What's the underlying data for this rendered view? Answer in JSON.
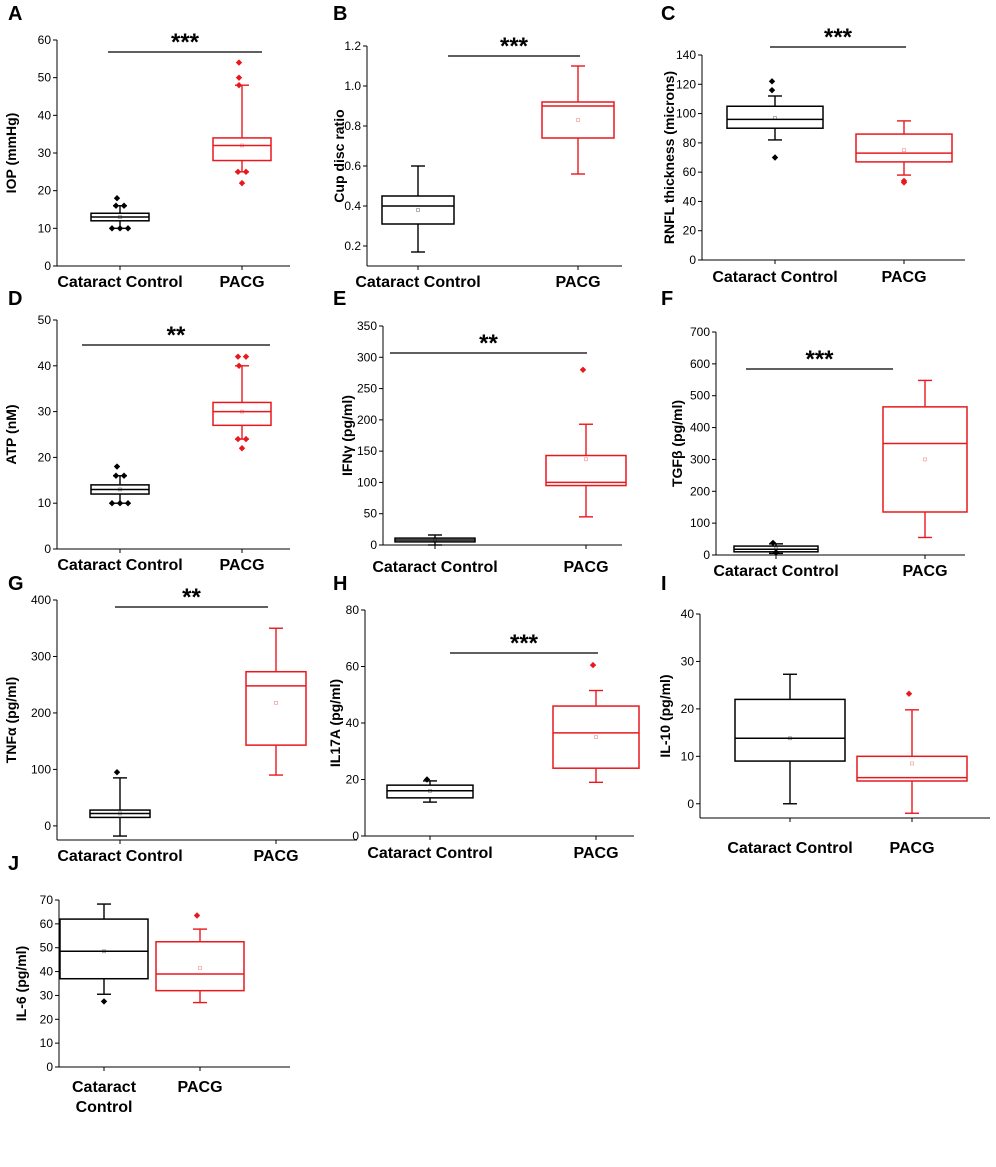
{
  "colors": {
    "control": "#000000",
    "pacg": "#e8191e",
    "axis": "#000000"
  },
  "chart_data": [
    {
      "id": "A",
      "type": "box",
      "panel_label": "A",
      "ylabel": "IOP (mmHg)",
      "ylim": [
        0,
        60
      ],
      "yticks": [
        0,
        10,
        20,
        30,
        40,
        50,
        60
      ],
      "categories": [
        "Cataract Control",
        "PACG"
      ],
      "series": [
        {
          "name": "Cataract Control",
          "whisker_low": 10,
          "q1": 12,
          "median": 13,
          "q3": 14,
          "whisker_high": 16,
          "mean": 13,
          "outliers": [
            10,
            10,
            10,
            16,
            16,
            18
          ]
        },
        {
          "name": "PACG",
          "whisker_low": 25,
          "q1": 28,
          "median": 32,
          "q3": 34,
          "whisker_high": 48,
          "mean": 32,
          "outliers": [
            22,
            25,
            25,
            48,
            50,
            54
          ]
        }
      ],
      "significance": "***"
    },
    {
      "id": "B",
      "type": "box",
      "panel_label": "B",
      "ylabel": "Cup disc ratio",
      "ylim": [
        0.1,
        1.2
      ],
      "yticks": [
        0.2,
        0.4,
        0.6,
        0.8,
        1.0,
        1.2
      ],
      "tick_labels": [
        "0.2",
        "0.4",
        "0.6",
        "0.8",
        "1.0",
        "1.2"
      ],
      "categories": [
        "Cataract Control",
        "PACG"
      ],
      "series": [
        {
          "name": "Cataract Control",
          "whisker_low": 0.17,
          "q1": 0.31,
          "median": 0.4,
          "q3": 0.45,
          "whisker_high": 0.6,
          "mean": 0.38,
          "outliers": []
        },
        {
          "name": "PACG",
          "whisker_low": 0.56,
          "q1": 0.74,
          "median": 0.9,
          "q3": 0.92,
          "whisker_high": 1.1,
          "mean": 0.83,
          "outliers": []
        }
      ],
      "significance": "***"
    },
    {
      "id": "C",
      "type": "box",
      "panel_label": "C",
      "ylabel": "RNFL thickness (microns)",
      "ylim": [
        0,
        140
      ],
      "yticks": [
        0,
        20,
        40,
        60,
        80,
        100,
        120,
        140
      ],
      "categories": [
        "Cataract Control",
        "PACG"
      ],
      "series": [
        {
          "name": "Cataract Control",
          "whisker_low": 82,
          "q1": 90,
          "median": 96,
          "q3": 105,
          "whisker_high": 112,
          "mean": 97,
          "outliers": [
            70,
            116,
            122
          ]
        },
        {
          "name": "PACG",
          "whisker_low": 58,
          "q1": 67,
          "median": 73,
          "q3": 86,
          "whisker_high": 95,
          "mean": 75,
          "outliers": [
            53,
            54
          ]
        }
      ],
      "significance": "***"
    },
    {
      "id": "D",
      "type": "box",
      "panel_label": "D",
      "ylabel": "ATP (nM)",
      "ylim": [
        0,
        50
      ],
      "yticks": [
        0,
        10,
        20,
        30,
        40,
        50
      ],
      "categories": [
        "Cataract Control",
        "PACG"
      ],
      "series": [
        {
          "name": "Cataract Control",
          "whisker_low": 10,
          "q1": 12,
          "median": 13,
          "q3": 14,
          "whisker_high": 16,
          "mean": 13,
          "outliers": [
            10,
            10,
            10,
            16,
            16,
            18
          ]
        },
        {
          "name": "PACG",
          "whisker_low": 24,
          "q1": 27,
          "median": 30,
          "q3": 32,
          "whisker_high": 40,
          "mean": 30,
          "outliers": [
            22,
            24,
            24,
            40,
            42,
            42
          ]
        }
      ],
      "significance": "**"
    },
    {
      "id": "E",
      "type": "box",
      "panel_label": "E",
      "ylabel": "IFNγ (pg/ml)",
      "ylim": [
        0,
        350
      ],
      "yticks": [
        0,
        50,
        100,
        150,
        200,
        250,
        300,
        350
      ],
      "categories": [
        "Cataract Control",
        "PACG"
      ],
      "series": [
        {
          "name": "Cataract Control",
          "whisker_low": 0,
          "q1": 5,
          "median": 8,
          "q3": 11,
          "whisker_high": 16,
          "mean": 8,
          "outliers": []
        },
        {
          "name": "PACG",
          "whisker_low": 45,
          "q1": 95,
          "median": 100,
          "q3": 143,
          "whisker_high": 193,
          "mean": 137,
          "outliers": [
            280
          ]
        }
      ],
      "significance": "**"
    },
    {
      "id": "F",
      "type": "box",
      "panel_label": "F",
      "ylabel": "TGFβ (pg/ml)",
      "ylim": [
        0,
        700
      ],
      "yticks": [
        0,
        100,
        200,
        300,
        400,
        500,
        600,
        700
      ],
      "categories": [
        "Cataract Control",
        "PACG"
      ],
      "series": [
        {
          "name": "Cataract Control",
          "whisker_low": 5,
          "q1": 10,
          "median": 18,
          "q3": 28,
          "whisker_high": 35,
          "mean": 20,
          "outliers": [
            8,
            38
          ]
        },
        {
          "name": "PACG",
          "whisker_low": 55,
          "q1": 135,
          "median": 350,
          "q3": 465,
          "whisker_high": 548,
          "mean": 300,
          "outliers": []
        }
      ],
      "significance": "***"
    },
    {
      "id": "G",
      "type": "box",
      "panel_label": "G",
      "ylabel": "TNFα (pg/ml)",
      "ylim": [
        -25,
        400
      ],
      "yticks": [
        0,
        100,
        200,
        300,
        400
      ],
      "categories": [
        "Cataract Control",
        "PACG"
      ],
      "series": [
        {
          "name": "Cataract Control",
          "whisker_low": -18,
          "q1": 15,
          "median": 22,
          "q3": 28,
          "whisker_high": 85,
          "mean": 22,
          "outliers": [
            95
          ]
        },
        {
          "name": "PACG",
          "whisker_low": 90,
          "q1": 143,
          "median": 248,
          "q3": 273,
          "whisker_high": 350,
          "mean": 218,
          "outliers": []
        }
      ],
      "significance": "**"
    },
    {
      "id": "H",
      "type": "box",
      "panel_label": "H",
      "ylabel": "IL17A (pg/ml)",
      "ylim": [
        0,
        80
      ],
      "yticks": [
        0,
        20,
        40,
        60,
        80
      ],
      "categories": [
        "Cataract Control",
        "PACG"
      ],
      "series": [
        {
          "name": "Cataract Control",
          "whisker_low": 12,
          "q1": 13.5,
          "median": 16,
          "q3": 18,
          "whisker_high": 19.5,
          "mean": 16,
          "outliers": [
            20
          ]
        },
        {
          "name": "PACG",
          "whisker_low": 19,
          "q1": 24,
          "median": 36.5,
          "q3": 46,
          "whisker_high": 51.5,
          "mean": 35,
          "outliers": [
            60.5
          ]
        }
      ],
      "significance": "***"
    },
    {
      "id": "I",
      "type": "box",
      "panel_label": "I",
      "ylabel": "IL-10 (pg/ml)",
      "ylim": [
        -3,
        40
      ],
      "yticks": [
        0,
        10,
        20,
        30,
        40
      ],
      "categories": [
        "Cataract Control",
        "PACG"
      ],
      "series": [
        {
          "name": "Cataract Control",
          "whisker_low": 0,
          "q1": 9,
          "median": 13.8,
          "q3": 22,
          "whisker_high": 27.3,
          "mean": 13.8,
          "outliers": []
        },
        {
          "name": "PACG",
          "whisker_low": -2,
          "q1": 4.8,
          "median": 5.5,
          "q3": 10,
          "whisker_high": 19.8,
          "mean": 8.5,
          "outliers": [
            23.2
          ]
        }
      ],
      "significance": ""
    },
    {
      "id": "J",
      "type": "box",
      "panel_label": "J",
      "ylabel": "IL-6 (pg/ml)",
      "ylim": [
        0,
        70
      ],
      "yticks": [
        0,
        10,
        20,
        30,
        40,
        50,
        60,
        70
      ],
      "categories": [
        "Cataract Control",
        "PACG"
      ],
      "series": [
        {
          "name": "Cataract Control",
          "whisker_low": 30.5,
          "q1": 37,
          "median": 48.5,
          "q3": 62,
          "whisker_high": 68.3,
          "mean": 48.5,
          "outliers": [
            27.5
          ]
        },
        {
          "name": "PACG",
          "whisker_low": 27,
          "q1": 32,
          "median": 39,
          "q3": 52.5,
          "whisker_high": 57.8,
          "mean": 41.5,
          "outliers": [
            63.5
          ]
        }
      ],
      "significance": ""
    }
  ]
}
